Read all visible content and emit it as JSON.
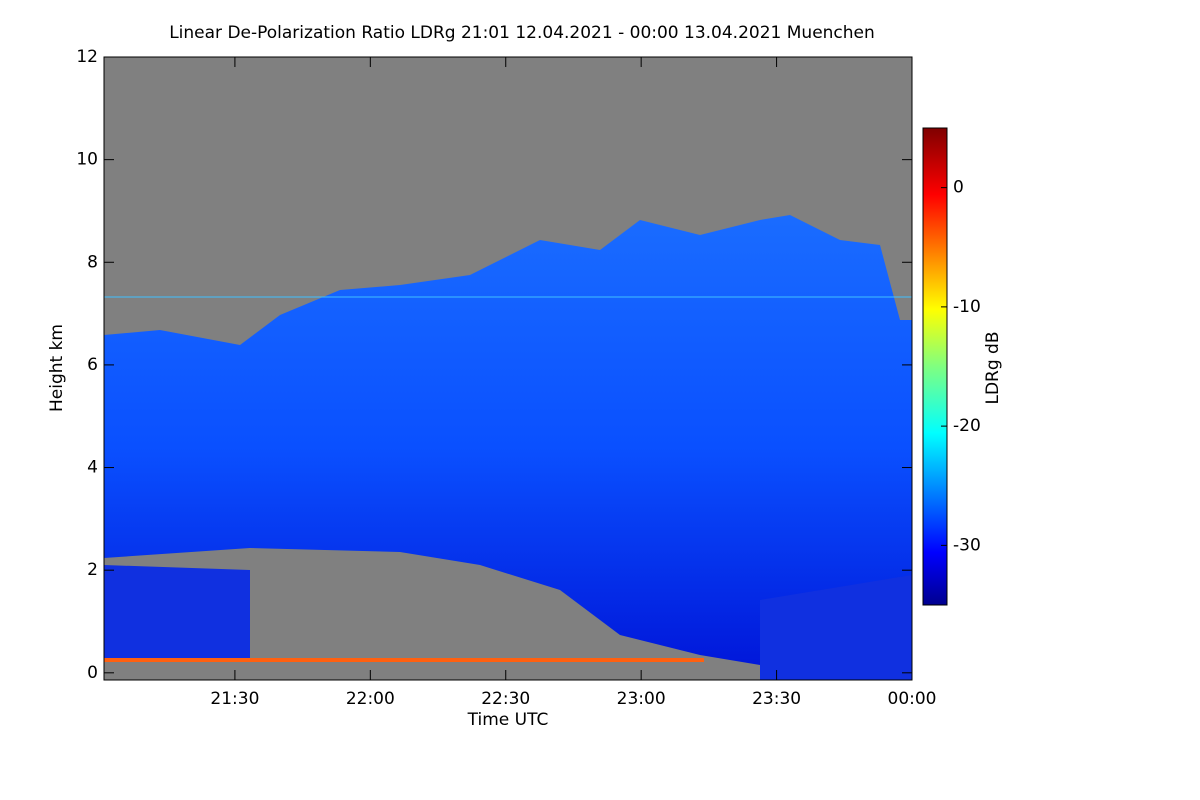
{
  "chart_data": {
    "type": "heatmap",
    "title": "Linear De-Polarization Ratio LDRg   21:01 12.04.2021 - 00:00 13.04.2021 Muenchen",
    "x_label": "Time UTC",
    "y_label": "Height km",
    "colorbar_label": "LDRg dB",
    "xlim": [
      1,
      180
    ],
    "xticks": [
      {
        "value": 30,
        "label": "21:30"
      },
      {
        "value": 60,
        "label": "22:00"
      },
      {
        "value": 90,
        "label": "22:30"
      },
      {
        "value": 120,
        "label": "23:00"
      },
      {
        "value": 150,
        "label": "23:30"
      },
      {
        "value": 180,
        "label": "00:00"
      }
    ],
    "ylim": [
      -0.14,
      12
    ],
    "yticks": [
      0,
      2,
      4,
      6,
      8,
      10,
      12
    ],
    "clim": [
      -35,
      5
    ],
    "cticks": [
      0,
      -10,
      -20,
      -30
    ]
  }
}
